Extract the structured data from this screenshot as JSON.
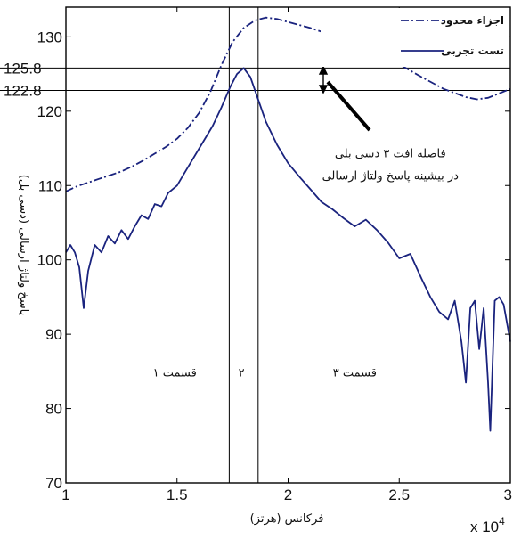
{
  "chart_data": {
    "type": "line",
    "xlabel": "فرکانس (هرتز)",
    "ylabel": "پاسخ ولتاژ ارسالی (دسی بل)",
    "x_multiplier": "x 10",
    "x_multiplier_exp": "4",
    "xlim": [
      1,
      3
    ],
    "ylim": [
      70,
      134
    ],
    "xticks": [
      "1",
      "1.5",
      "2",
      "2.5",
      "3"
    ],
    "yticks": [
      "70",
      "80",
      "90",
      "100",
      "110",
      "120",
      "130"
    ],
    "xtick_values": [
      1,
      1.5,
      2,
      2.5,
      3
    ],
    "ytick_values": [
      70,
      80,
      90,
      100,
      110,
      120,
      130
    ],
    "hlines": [
      {
        "value": 125.8,
        "label": "125.8"
      },
      {
        "value": 122.8,
        "label": "122.8"
      }
    ],
    "vlines": [
      1.735,
      1.865
    ],
    "series": [
      {
        "name": "اجزاء محدود",
        "style": "dashdot",
        "color": "#1a237e",
        "x": [
          1.0,
          1.05,
          1.1,
          1.15,
          1.2,
          1.25,
          1.3,
          1.35,
          1.4,
          1.45,
          1.5,
          1.55,
          1.6,
          1.65,
          1.7,
          1.75,
          1.8,
          1.85,
          1.9,
          1.95,
          2.0,
          2.1,
          2.2,
          2.3,
          2.4,
          2.5,
          2.6,
          2.7,
          2.8,
          2.85,
          2.9,
          2.95,
          3.0
        ],
        "y": [
          109.2,
          109.9,
          110.4,
          110.9,
          111.4,
          111.9,
          112.6,
          113.4,
          114.3,
          115.2,
          116.3,
          117.8,
          119.8,
          122.6,
          126.2,
          129.3,
          131.2,
          132.2,
          132.6,
          132.4,
          132.0,
          131.2,
          130.2,
          129.1,
          127.8,
          126.3,
          124.6,
          123.0,
          121.9,
          121.6,
          121.8,
          122.4,
          123.0
        ]
      },
      {
        "name": "تست تجربی",
        "style": "solid",
        "color": "#1a237e",
        "x": [
          1.0,
          1.02,
          1.04,
          1.06,
          1.08,
          1.1,
          1.13,
          1.16,
          1.19,
          1.22,
          1.25,
          1.28,
          1.31,
          1.34,
          1.37,
          1.4,
          1.43,
          1.46,
          1.5,
          1.53,
          1.56,
          1.6,
          1.63,
          1.66,
          1.7,
          1.74,
          1.77,
          1.8,
          1.83,
          1.86,
          1.9,
          1.95,
          2.0,
          2.05,
          2.1,
          2.15,
          2.2,
          2.25,
          2.3,
          2.35,
          2.4,
          2.45,
          2.5,
          2.55,
          2.6,
          2.64,
          2.68,
          2.72,
          2.75,
          2.78,
          2.8,
          2.82,
          2.84,
          2.86,
          2.88,
          2.9,
          2.91,
          2.93,
          2.95,
          2.97,
          3.0
        ],
        "y": [
          101.0,
          102.0,
          101.0,
          99.0,
          93.5,
          98.5,
          102.0,
          101.0,
          103.2,
          102.2,
          104.0,
          102.8,
          104.5,
          106.0,
          105.5,
          107.5,
          107.2,
          109.0,
          110.0,
          111.5,
          113.0,
          115.0,
          116.5,
          118.0,
          120.5,
          123.3,
          125.0,
          125.8,
          124.6,
          122.0,
          118.6,
          115.5,
          113.0,
          111.2,
          109.5,
          107.8,
          106.8,
          105.6,
          104.5,
          105.4,
          104.0,
          102.3,
          100.2,
          100.8,
          97.5,
          95.0,
          93.0,
          92.0,
          94.5,
          89.0,
          83.5,
          93.5,
          94.5,
          88.0,
          93.5,
          83.5,
          77.0,
          94.5,
          95.0,
          94.0,
          89.0
        ]
      }
    ],
    "annotations": [
      {
        "text": "فاصله افت ۳ دسی بلی",
        "x": 2.46,
        "y": 113.8
      },
      {
        "text": "در بیشینه پاسخ ولتاژ ارسالی",
        "x": 2.46,
        "y": 110.8
      },
      {
        "text": "قسمت ۱",
        "x": 1.49,
        "y": 84.3
      },
      {
        "text": "۲",
        "x": 1.79,
        "y": 84.3
      },
      {
        "text": "قسمت ۳",
        "x": 2.3,
        "y": 84.3
      }
    ],
    "legend_position": "top-right",
    "grid": false
  }
}
